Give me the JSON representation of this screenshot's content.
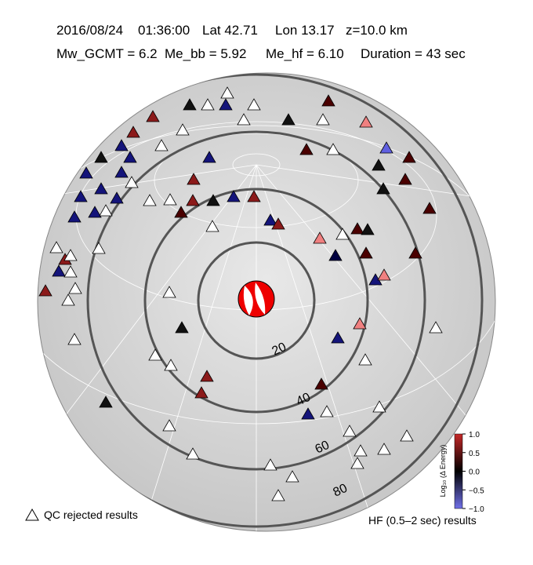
{
  "header": {
    "date": "2016/08/24",
    "time": "01:36:00",
    "lat": "Lat 42.71",
    "lon": "Lon 13.17",
    "depth": "z=10.0 km",
    "mw": "Mw_GCMT = 6.2",
    "me_bb": "Me_bb = 5.92",
    "me_hf": "Me_hf = 6.10",
    "duration": "Duration = 43 sec"
  },
  "map": {
    "distance_labels": [
      "20",
      "40",
      "60",
      "80"
    ]
  },
  "colorbar": {
    "label": "Log₁₀ (Δ Energy)",
    "ticks": [
      {
        "value": 1,
        "label": "1.0"
      },
      {
        "value": 0.5,
        "label": "0.5"
      },
      {
        "value": 0,
        "label": "0.0"
      },
      {
        "value": -0.5,
        "label": "−0.5"
      },
      {
        "value": -1,
        "label": "−1.0"
      }
    ],
    "lim": [
      -1,
      1
    ]
  },
  "legend": {
    "rejected": "QC rejected results",
    "band": "HF (0.5–2 sec) results"
  }
}
